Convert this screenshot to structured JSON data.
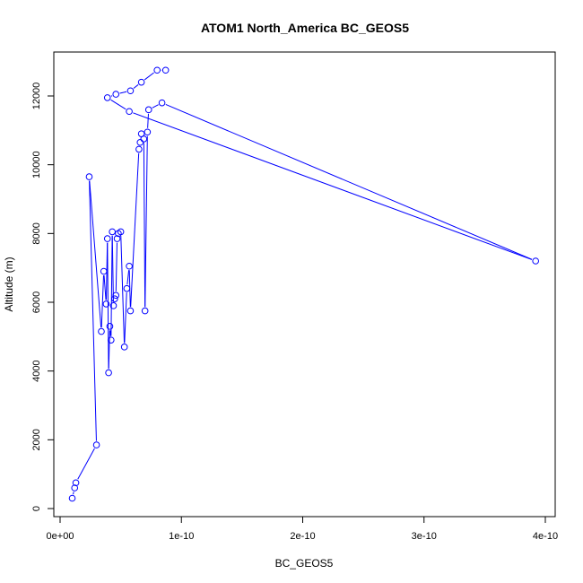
{
  "chart_data": {
    "type": "scatter",
    "title": "ATOM1 North_America BC_GEOS5",
    "xlabel": "BC_GEOS5",
    "ylabel": "Altitude (m)",
    "xlim": [
      0,
      4e-10
    ],
    "ylim": [
      0,
      13000
    ],
    "x_ticks": [
      0,
      1e-10,
      2e-10,
      3e-10,
      4e-10
    ],
    "x_tick_labels": [
      "0e+00",
      "1e-10",
      "2e-10",
      "3e-10",
      "4e-10"
    ],
    "y_ticks": [
      0,
      2000,
      4000,
      6000,
      8000,
      10000,
      12000
    ],
    "y_tick_labels": [
      "0",
      "2000",
      "4000",
      "6000",
      "8000",
      "10000",
      "12000"
    ],
    "grid": false,
    "series_color": "#0000ff",
    "style": "line-with-open-circles",
    "series": [
      {
        "x": [
          1e-11,
          1.2e-11,
          1.3e-11,
          3e-11,
          2.4e-11,
          3.4e-11,
          3.6e-11,
          3.8e-11,
          3.9e-11,
          4e-11,
          4.1e-11,
          4.2e-11,
          4.3e-11,
          4.4e-11,
          4.5e-11,
          4.6e-11,
          4.7e-11,
          4.8e-11,
          5e-11,
          5.3e-11,
          5.5e-11,
          5.7e-11,
          5.8e-11,
          6.5e-11,
          6.6e-11,
          6.7e-11,
          6.9e-11,
          7e-11,
          7.2e-11,
          7.3e-11,
          8.4e-11,
          3.92e-10,
          5.7e-11,
          3.9e-11,
          4.6e-11,
          5.8e-11,
          6.7e-11,
          8e-11,
          8.7e-11
        ],
        "y": [
          300,
          600,
          750,
          1850,
          9650,
          5150,
          6900,
          5950,
          7850,
          3950,
          5300,
          4900,
          8050,
          5900,
          6100,
          6200,
          7850,
          8000,
          8050,
          4700,
          6400,
          7050,
          5750,
          10450,
          10650,
          10900,
          10750,
          5750,
          10950,
          11600,
          11800,
          7200,
          11550,
          11950,
          12050,
          12150,
          12400,
          12750,
          12750
        ]
      }
    ]
  }
}
